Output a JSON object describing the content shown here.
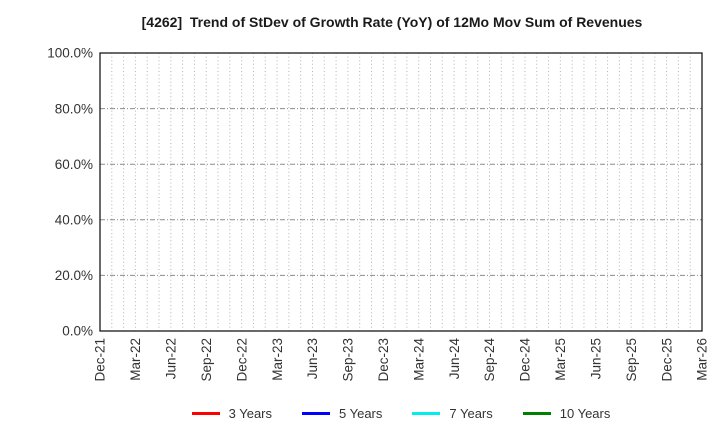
{
  "chart": {
    "title": "[4262]  Trend of StDev of Growth Rate (YoY) of 12Mo Mov Sum of Revenues"
  },
  "chart_data": {
    "type": "line",
    "title": "[4262]  Trend of StDev of Growth Rate (YoY) of 12Mo Mov Sum of Revenues",
    "x_tick_labels": [
      "Dec-21",
      "Mar-22",
      "Jun-22",
      "Sep-22",
      "Dec-22",
      "Mar-23",
      "Jun-23",
      "Sep-23",
      "Dec-23",
      "Mar-24",
      "Jun-24",
      "Sep-24",
      "Dec-24",
      "Mar-25",
      "Jun-25",
      "Sep-25",
      "Dec-25",
      "Mar-26"
    ],
    "x_total_months": 51,
    "y_tick_labels": [
      "0.0%",
      "20.0%",
      "40.0%",
      "60.0%",
      "80.0%",
      "100.0%"
    ],
    "ylim": [
      0,
      100
    ],
    "y_unit": "%",
    "grid": true,
    "legend_position": "bottom-center",
    "series": [
      {
        "name": "3 Years",
        "color": "#ff0000",
        "values": []
      },
      {
        "name": "5 Years",
        "color": "#0000ff",
        "values": []
      },
      {
        "name": "7 Years",
        "color": "#00eeee",
        "values": []
      },
      {
        "name": "10 Years",
        "color": "#008000",
        "values": []
      }
    ]
  }
}
